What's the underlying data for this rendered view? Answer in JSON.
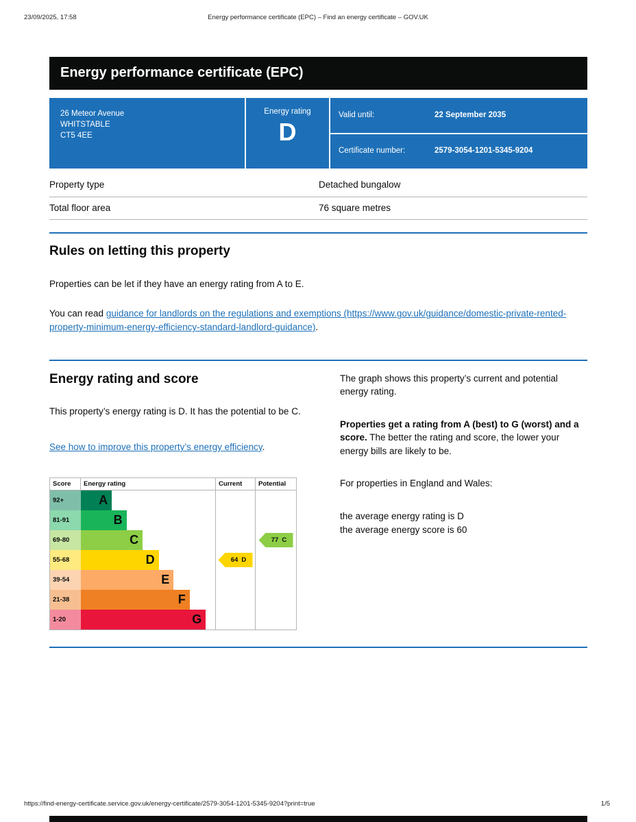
{
  "print_header": {
    "datetime": "23/09/2025, 17:58",
    "title": "Energy performance certificate (EPC) – Find an energy certificate – GOV.UK"
  },
  "banner": {
    "title": "Energy performance certificate (EPC)"
  },
  "certificate_box": {
    "address_line1": "26 Meteor Avenue",
    "address_line2": "WHITSTABLE",
    "address_line3": "CT5 4EE",
    "energy_rating_label": "Energy rating",
    "energy_rating": "D",
    "valid_until_label": "Valid until:",
    "valid_until": "22 September 2035",
    "certificate_number_label": "Certificate number:",
    "certificate_number": "2579-3054-1201-5345-9204"
  },
  "summary": {
    "rows": [
      {
        "label": "Property type",
        "value": "Detached bungalow"
      },
      {
        "label": "Total floor area",
        "value": "76 square metres"
      }
    ]
  },
  "letting": {
    "heading": "Rules on letting this property",
    "paragraph1": "Properties can be let if they have an energy rating from A to E.",
    "paragraph2_prefix": "You can read ",
    "link_text": "guidance for landlords on the regulations and exemptions (https://www.gov.uk/guidance/domestic-private-rented-property-minimum-energy-efficiency-standard-landlord-guidance)",
    "paragraph2_suffix": "."
  },
  "rating_section": {
    "heading": "Energy rating and score",
    "paragraph1": "This property’s energy rating is D. It has the potential to be C.",
    "improve_link": "See how to improve this property’s energy efficiency",
    "improve_link_suffix": ".",
    "right_paragraph1": "The graph shows this property’s current and potential energy rating.",
    "right_bold": "Properties get a rating from A (best) to G (worst) and a score.",
    "right_after_bold": " The better the rating and score, the lower your energy bills are likely to be.",
    "right_paragraph3": "For properties in England and Wales:",
    "average_line1": "the average energy rating is D",
    "average_line2": "the average energy score is 60"
  },
  "chart_data": {
    "type": "epc-rating-bands",
    "title": "Energy rating and score graph",
    "headers": [
      "Score",
      "Energy rating",
      "Current",
      "Potential"
    ],
    "bands": [
      {
        "score": "92+",
        "letter": "A",
        "color": "#008054",
        "tint": "#7fbfa9",
        "width_pct": 23
      },
      {
        "score": "81-91",
        "letter": "B",
        "color": "#19b459",
        "tint": "#8bd9ac",
        "width_pct": 34
      },
      {
        "score": "69-80",
        "letter": "C",
        "color": "#8dce46",
        "tint": "#c6e6a2",
        "width_pct": 46
      },
      {
        "score": "55-68",
        "letter": "D",
        "color": "#ffd500",
        "tint": "#ffea7f",
        "width_pct": 58
      },
      {
        "score": "39-54",
        "letter": "E",
        "color": "#fcaa65",
        "tint": "#fdd4b2",
        "width_pct": 69
      },
      {
        "score": "21-38",
        "letter": "F",
        "color": "#ef8023",
        "tint": "#f7bf91",
        "width_pct": 81
      },
      {
        "score": "1-20",
        "letter": "G",
        "color": "#e9153b",
        "tint": "#f48a9d",
        "width_pct": 93
      }
    ],
    "current": {
      "value": 64,
      "letter": "D",
      "color": "#ffd500"
    },
    "potential": {
      "value": 77,
      "letter": "C",
      "color": "#8dce46"
    }
  },
  "print_footer": {
    "url": "https://find-energy-certificate.service.gov.uk/energy-certificate/2579-3054-1201-5345-9204?print=true",
    "page_indicator": "1/5"
  },
  "colors": {
    "brand_blue": "#1d70b8",
    "banner_black": "#0b0c0c",
    "rule_blue": "#1d70b8",
    "border_grey": "#b1b4b6"
  }
}
